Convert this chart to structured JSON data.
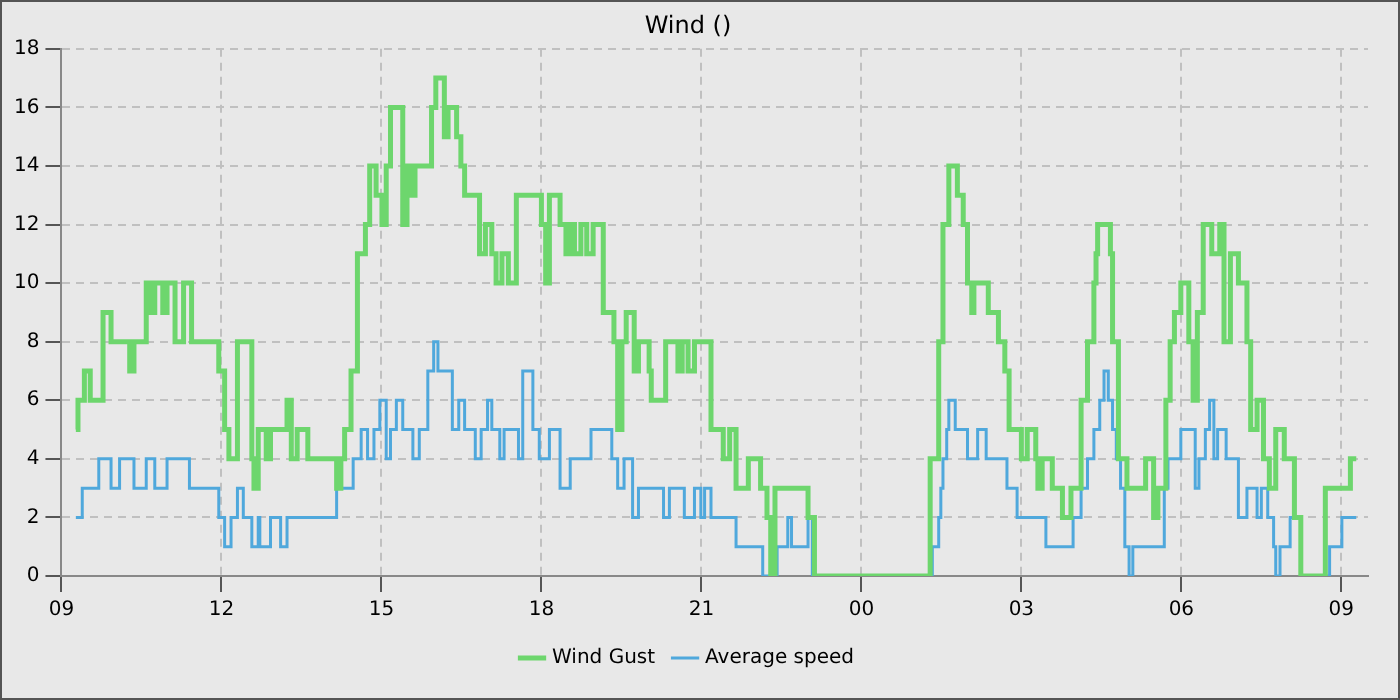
{
  "chart_data": {
    "type": "step",
    "title": "Wind ()",
    "xlim": [
      9,
      33.5
    ],
    "xticks": [
      {
        "value": 9,
        "label": "09"
      },
      {
        "value": 12,
        "label": "12"
      },
      {
        "value": 15,
        "label": "15"
      },
      {
        "value": 18,
        "label": "18"
      },
      {
        "value": 21,
        "label": "21"
      },
      {
        "value": 24,
        "label": "00"
      },
      {
        "value": 27,
        "label": "03"
      },
      {
        "value": 30,
        "label": "06"
      },
      {
        "value": 33,
        "label": "09"
      }
    ],
    "ylim": [
      0,
      18
    ],
    "yticks": [
      0,
      2,
      4,
      6,
      8,
      10,
      12,
      14,
      16,
      18
    ],
    "grid": true,
    "legend": "bottom",
    "series": [
      {
        "name": "Wind Gust",
        "color": "#6dd66d",
        "x": [
          9.27,
          9.31,
          9.43,
          9.54,
          9.78,
          9.93,
          10.28,
          10.36,
          10.59,
          10.67,
          10.75,
          10.9,
          10.98,
          11.13,
          11.29,
          11.44,
          11.95,
          12.06,
          12.14,
          12.3,
          12.57,
          12.61,
          12.69,
          12.84,
          12.92,
          13.23,
          13.31,
          13.42,
          13.62,
          14.16,
          14.24,
          14.31,
          14.43,
          14.55,
          14.7,
          14.78,
          14.9,
          15.01,
          15.09,
          15.17,
          15.4,
          15.48,
          15.56,
          15.63,
          15.94,
          16.02,
          16.18,
          16.25,
          16.41,
          16.49,
          16.56,
          16.84,
          16.95,
          17.07,
          17.15,
          17.26,
          17.38,
          17.53,
          18.0,
          18.08,
          18.15,
          18.35,
          18.46,
          18.54,
          18.62,
          18.74,
          18.85,
          18.97,
          19.16,
          19.36,
          19.43,
          19.51,
          19.59,
          19.74,
          19.82,
          20.02,
          20.06,
          20.33,
          20.56,
          20.64,
          20.75,
          20.87,
          21.18,
          21.41,
          21.53,
          21.65,
          21.88,
          22.11,
          22.23,
          22.3,
          22.38,
          23.0,
          23.12,
          25.29,
          25.45,
          25.53,
          25.64,
          25.8,
          25.91,
          25.99,
          26.07,
          26.11,
          26.38,
          26.57,
          26.69,
          26.77,
          27.0,
          27.11,
          27.27,
          27.31,
          27.39,
          27.58,
          27.77,
          27.93,
          28.12,
          28.24,
          28.36,
          28.4,
          28.43,
          28.67,
          28.71,
          28.82,
          28.98,
          29.33,
          29.48,
          29.56,
          29.71,
          29.79,
          29.87,
          29.99,
          30.14,
          30.22,
          30.3,
          30.41,
          30.57,
          30.72,
          30.8,
          30.92,
          31.07,
          31.23,
          31.3,
          31.42,
          31.54,
          31.65,
          31.77,
          31.93,
          32.12,
          32.24,
          32.7,
          33.17,
          33.28
        ],
        "values": [
          5,
          6,
          7,
          6,
          9,
          8,
          7,
          8,
          10,
          9,
          10,
          9,
          10,
          8,
          10,
          8,
          7,
          5,
          4,
          8,
          4,
          3,
          5,
          4,
          5,
          6,
          4,
          5,
          4,
          3,
          4,
          5,
          7,
          11,
          12,
          14,
          13,
          12,
          14,
          16,
          12,
          14,
          13,
          14,
          16,
          17,
          15,
          16,
          15,
          14,
          13,
          11,
          12,
          11,
          10,
          11,
          10,
          13,
          12,
          10,
          13,
          12,
          11,
          12,
          11,
          12,
          11,
          12,
          9,
          8,
          5,
          8,
          9,
          7,
          8,
          7,
          6,
          8,
          7,
          8,
          7,
          8,
          5,
          4,
          5,
          3,
          4,
          3,
          2,
          0,
          3,
          2,
          0,
          4,
          8,
          12,
          14,
          13,
          12,
          10,
          9,
          10,
          9,
          8,
          7,
          5,
          4,
          5,
          4,
          3,
          4,
          3,
          2,
          3,
          6,
          8,
          10,
          11,
          12,
          11,
          8,
          4,
          3,
          4,
          2,
          3,
          6,
          8,
          9,
          10,
          8,
          6,
          9,
          12,
          11,
          12,
          8,
          11,
          10,
          8,
          5,
          6,
          4,
          3,
          5,
          4,
          2,
          0,
          3,
          4,
          4
        ]
      },
      {
        "name": "Average speed",
        "color": "#4fa8dc",
        "x": [
          9.27,
          9.39,
          9.7,
          9.93,
          10.09,
          10.36,
          10.59,
          10.75,
          10.98,
          11.4,
          11.95,
          12.06,
          12.18,
          12.3,
          12.41,
          12.57,
          12.69,
          12.72,
          12.92,
          13.11,
          13.23,
          14.16,
          14.47,
          14.62,
          14.74,
          14.86,
          14.97,
          15.09,
          15.17,
          15.28,
          15.4,
          15.59,
          15.71,
          15.87,
          15.98,
          16.06,
          16.33,
          16.45,
          16.56,
          16.76,
          16.87,
          16.99,
          17.07,
          17.22,
          17.3,
          17.57,
          17.65,
          17.84,
          17.96,
          18.15,
          18.35,
          18.54,
          18.93,
          19.32,
          19.43,
          19.55,
          19.71,
          19.82,
          20.29,
          20.4,
          20.68,
          20.87,
          20.99,
          21.06,
          21.18,
          21.65,
          22.15,
          22.42,
          22.62,
          22.69,
          23.0,
          23.08,
          25.33,
          25.45,
          25.49,
          25.53,
          25.6,
          25.64,
          25.76,
          25.99,
          26.18,
          26.34,
          26.73,
          26.92,
          27.46,
          27.97,
          28.12,
          28.24,
          28.36,
          28.47,
          28.55,
          28.63,
          28.71,
          28.78,
          28.86,
          28.94,
          29.02,
          29.09,
          29.68,
          29.75,
          29.99,
          30.26,
          30.33,
          30.45,
          30.53,
          30.61,
          30.68,
          30.84,
          31.07,
          31.23,
          31.42,
          31.5,
          31.62,
          31.73,
          31.77,
          31.85,
          32.04,
          32.24,
          32.78,
          33.01,
          33.28
        ],
        "values": [
          2,
          3,
          4,
          3,
          4,
          3,
          4,
          3,
          4,
          3,
          2,
          1,
          2,
          3,
          2,
          1,
          2,
          1,
          2,
          1,
          2,
          3,
          4,
          5,
          4,
          5,
          6,
          4,
          5,
          6,
          5,
          4,
          5,
          7,
          8,
          7,
          5,
          6,
          5,
          4,
          5,
          6,
          5,
          4,
          5,
          4,
          7,
          5,
          4,
          5,
          3,
          4,
          5,
          4,
          3,
          4,
          2,
          3,
          2,
          3,
          2,
          3,
          2,
          3,
          2,
          1,
          0,
          1,
          2,
          1,
          2,
          0,
          1,
          2,
          3,
          4,
          5,
          6,
          5,
          4,
          5,
          4,
          3,
          2,
          1,
          2,
          3,
          4,
          5,
          6,
          7,
          6,
          5,
          4,
          3,
          1,
          0,
          1,
          3,
          4,
          5,
          3,
          4,
          5,
          6,
          4,
          5,
          4,
          2,
          3,
          2,
          3,
          2,
          1,
          0,
          1,
          2,
          0,
          1,
          2,
          2
        ]
      }
    ]
  }
}
